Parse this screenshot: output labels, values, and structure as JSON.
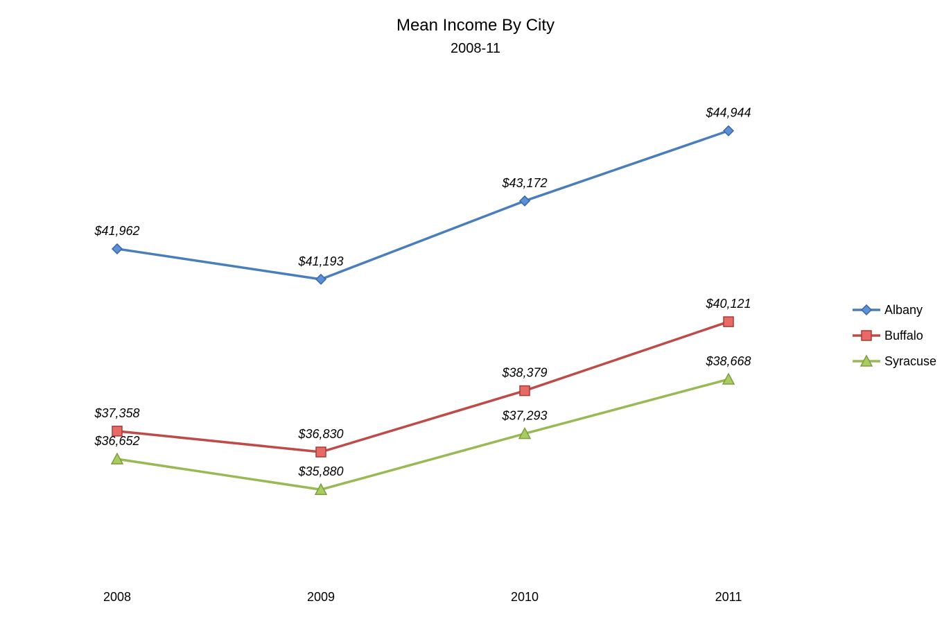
{
  "chart_data": {
    "type": "line",
    "title": "Mean Income By City",
    "subtitle": "2008-11",
    "xlabel": "",
    "ylabel": "",
    "categories": [
      "2008",
      "2009",
      "2010",
      "2011"
    ],
    "ylim": [
      34000,
      46500
    ],
    "grid": false,
    "legend_position": "right",
    "series": [
      {
        "name": "Albany",
        "values": [
          41962,
          41193,
          43172,
          44944
        ],
        "labels": [
          "$41,962",
          "$41,193",
          "$43,172",
          "$44,944"
        ],
        "color": "#4a7ebb",
        "marker": "diamond",
        "marker_fill": "#5b8fd6",
        "marker_stroke": "#3a66a7"
      },
      {
        "name": "Buffalo",
        "values": [
          37358,
          36830,
          38379,
          40121
        ],
        "labels": [
          "$37,358",
          "$36,830",
          "$38,379",
          "$40,121"
        ],
        "color": "#be4b48",
        "marker": "square",
        "marker_fill": "#e86a66",
        "marker_stroke": "#a63a37"
      },
      {
        "name": "Syracuse",
        "values": [
          36652,
          35880,
          37293,
          38668
        ],
        "labels": [
          "$36,652",
          "$35,880",
          "$37,293",
          "$38,668"
        ],
        "color": "#98b954",
        "marker": "triangle",
        "marker_fill": "#a9cc5e",
        "marker_stroke": "#7f9c44"
      }
    ]
  }
}
